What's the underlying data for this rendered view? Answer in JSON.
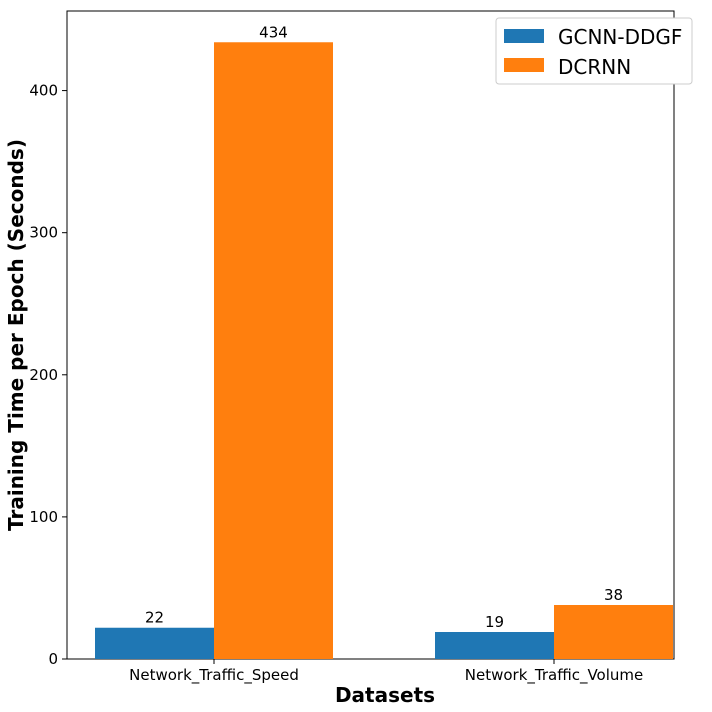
{
  "chart_data": {
    "type": "bar",
    "title": "",
    "xlabel": "Datasets",
    "ylabel": "Training Time per Epoch (Seconds)",
    "categories": [
      "Network_Traffic_Speed",
      "Network_Traffic_Volume"
    ],
    "series": [
      {
        "name": "GCNN-DDGF",
        "values": [
          22,
          19
        ],
        "color": "#1f77b4"
      },
      {
        "name": "DCRNN",
        "values": [
          434,
          38
        ],
        "color": "#ff7f0e"
      }
    ],
    "data_labels": [
      "22",
      "434",
      "19",
      "38"
    ],
    "y_ticks": [
      "0",
      "100",
      "200",
      "300",
      "400"
    ],
    "ylim": [
      0,
      456
    ],
    "grid": false,
    "legend_position": "top-right"
  }
}
